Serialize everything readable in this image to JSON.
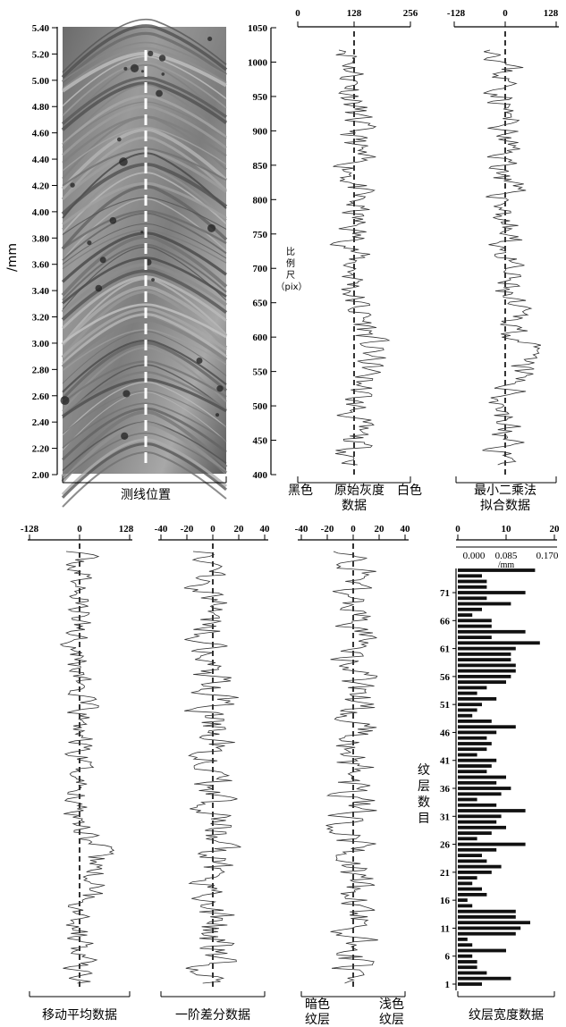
{
  "photo_panel": {
    "ylabel": "/mm",
    "yticks": [
      "5.40",
      "5.20",
      "5.00",
      "4.80",
      "4.60",
      "4.40",
      "4.20",
      "4.00",
      "3.80",
      "3.60",
      "3.40",
      "3.20",
      "3.00",
      "2.80",
      "2.60",
      "2.40",
      "2.20",
      "2.00"
    ],
    "caption": "测线位置"
  },
  "raw_gray": {
    "top_ticks": [
      "0",
      "128",
      "256"
    ],
    "yticks": [
      "1050",
      "1000",
      "950",
      "900",
      "850",
      "800",
      "750",
      "700",
      "650",
      "600",
      "550",
      "500",
      "450",
      "400"
    ],
    "scale_label": [
      "比",
      "例",
      "尺",
      "（pix）"
    ],
    "left_label": "黑色",
    "mid_label_1": "原始灰度",
    "mid_label_2": "数据",
    "right_label": "白色"
  },
  "lsq_fit": {
    "top_ticks": [
      "-128",
      "0",
      "128"
    ],
    "label_1": "最小二乘法",
    "label_2": "拟合数据"
  },
  "moving_avg": {
    "top_ticks": [
      "-128",
      "0",
      "128"
    ],
    "label": "移动平均数据"
  },
  "first_diff": {
    "top_ticks": [
      "-40",
      "-20",
      "0",
      "20",
      "40"
    ],
    "label": "一阶差分数据"
  },
  "laminae": {
    "top_ticks": [
      "-40",
      "-20",
      "0",
      "20",
      "40"
    ],
    "dark_label_1": "暗色",
    "dark_label_2": "纹层",
    "light_label_1": "浅色",
    "light_label_2": "纹层"
  },
  "chart_data": {
    "type": "bar",
    "orientation": "horizontal",
    "top_ticks": [
      "0",
      "10",
      "20"
    ],
    "top_ticks_mm": [
      "0.000",
      "0.085",
      "0.170"
    ],
    "unit": "/mm",
    "ylabel_chars": [
      "纹",
      "层",
      "数",
      "目"
    ],
    "ytick_labels": [
      "1",
      "6",
      "11",
      "16",
      "21",
      "26",
      "31",
      "36",
      "41",
      "46",
      "51",
      "56",
      "61",
      "66",
      "71"
    ],
    "caption": "纹层宽度数据",
    "xlim": [
      0,
      20
    ],
    "values": [
      5,
      11,
      6,
      4,
      4,
      3,
      10,
      3,
      2,
      12,
      13,
      15,
      12,
      12,
      3,
      2,
      6,
      5,
      3,
      4,
      7,
      9,
      6,
      5,
      8,
      14,
      4,
      7,
      10,
      8,
      9,
      14,
      8,
      4,
      9,
      11,
      8,
      10,
      6,
      7,
      8,
      4,
      6,
      7,
      6,
      8,
      12,
      7,
      3,
      4,
      5,
      8,
      4,
      6,
      10,
      11,
      12,
      12,
      11,
      11,
      12,
      17,
      7,
      14,
      7,
      7,
      3,
      5,
      11,
      6,
      14,
      6,
      6,
      5,
      16
    ]
  }
}
